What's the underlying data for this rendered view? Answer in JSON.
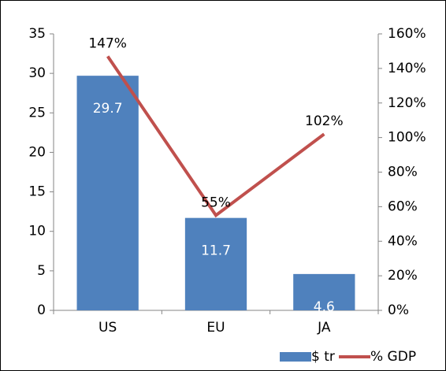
{
  "chart_data": {
    "type": "bar",
    "categories": [
      "US",
      "EU",
      "JA"
    ],
    "series": [
      {
        "name": "$ tr",
        "type": "bar",
        "color": "#4f81bd",
        "values": [
          29.7,
          11.7,
          4.6
        ]
      },
      {
        "name": "% GDP",
        "type": "line",
        "axis": "y2",
        "color": "#c0504d",
        "values": [
          147,
          55,
          102
        ],
        "value_labels": [
          "147%",
          "55%",
          "102%"
        ]
      }
    ],
    "ylim": [
      0,
      35
    ],
    "yticks": [
      0,
      5,
      10,
      15,
      20,
      25,
      30,
      35
    ],
    "y2lim": [
      0,
      160
    ],
    "y2ticks": [
      {
        "value": 0,
        "label": "0%"
      },
      {
        "value": 20,
        "label": "20%"
      },
      {
        "value": 40,
        "label": "40%"
      },
      {
        "value": 60,
        "label": "60%"
      },
      {
        "value": 80,
        "label": "80%"
      },
      {
        "value": 100,
        "label": "100%"
      },
      {
        "value": 120,
        "label": "120%"
      },
      {
        "value": 140,
        "label": "140%"
      },
      {
        "value": 160,
        "label": "160%"
      }
    ],
    "grid": false,
    "legend": "bottom"
  }
}
